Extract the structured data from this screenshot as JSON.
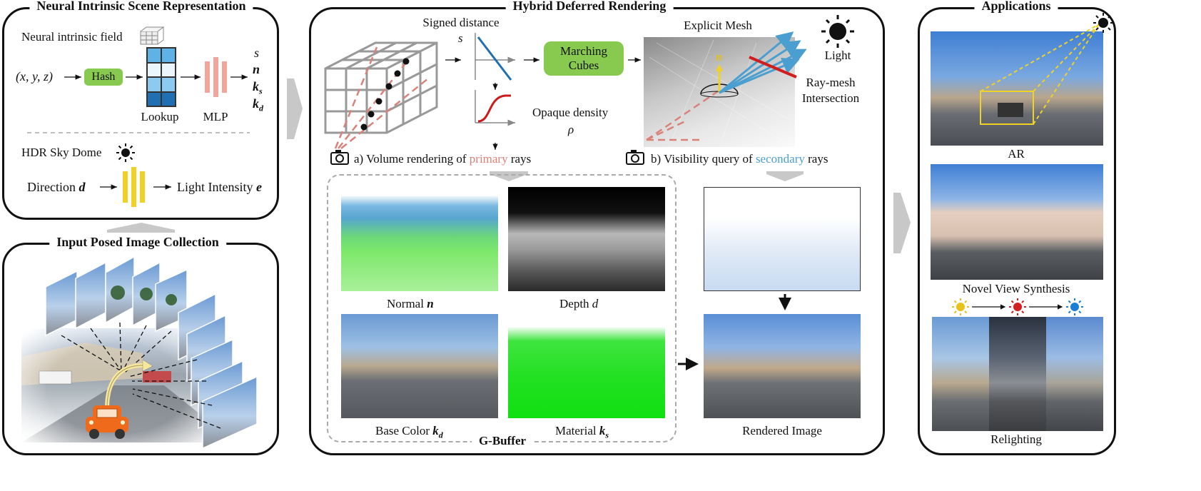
{
  "panel1": {
    "title": "Neural Intrinsic Scene Representation",
    "neural_field_label": "Neural intrinsic field",
    "input_coords": "(x, y, z)",
    "hash_label": "Hash",
    "lookup_label": "Lookup",
    "mlp_label": "MLP",
    "outputs": [
      "s",
      "n",
      "k",
      "k"
    ],
    "output_subs": [
      "",
      "",
      "s",
      "d"
    ],
    "sky_dome_label": "HDR Sky Dome",
    "direction_label": "Direction",
    "direction_symbol": "d",
    "intensity_label": "Light Intensity",
    "intensity_symbol": "e"
  },
  "panel2": {
    "title": "Input Posed Image Collection"
  },
  "panel3": {
    "title": "Hybrid Deferred Rendering",
    "signed_distance_label": "Signed distance",
    "signed_distance_symbol": "s",
    "marching_cubes_label_1": "Marching",
    "marching_cubes_label_2": "Cubes",
    "opaque_density_label": "Opaque density",
    "opaque_density_symbol": "ρ",
    "explicit_mesh_label": "Explicit Mesh",
    "light_label": "Light",
    "ray_mesh_label_1": "Ray-mesh",
    "ray_mesh_label_2": "Intersection",
    "mesh_normal_symbol": "n",
    "volume_caption_pre": "a) Volume rendering of ",
    "volume_caption_hl": "primary",
    "volume_caption_post": " rays",
    "visibility_caption_pre": "b) Visibility query of ",
    "visibility_caption_hl": "secondary",
    "visibility_caption_post": " rays",
    "normal_label": "Normal",
    "normal_symbol": "n",
    "depth_label": "Depth",
    "depth_symbol": "d",
    "base_color_label": "Base Color",
    "base_color_symbol": "k",
    "base_color_sub": "d",
    "material_label": "Material",
    "material_symbol": "k",
    "material_sub": "s",
    "gbuffer_label": "G-Buffer",
    "rendered_label": "Rendered Image"
  },
  "panel4": {
    "title": "Applications",
    "ar_label": "AR",
    "nvs_label": "Novel View Synthesis",
    "relight_label": "Relighting"
  },
  "colors": {
    "green": "#88c94f",
    "primary_ray": "#d9827a",
    "secondary_ray": "#4b9fd0",
    "blue_line": "#1f6fb2",
    "mlp": "#f2a59a",
    "sky_mlp": "#f0d227",
    "lookup_light": "#cfe8f7",
    "lookup_mid": "#5fb2e6",
    "lookup_dark": "#1f6fb2",
    "sun_yellow": "#e8c21a",
    "sun_red": "#d02020",
    "sun_blue": "#1c7fd6"
  }
}
